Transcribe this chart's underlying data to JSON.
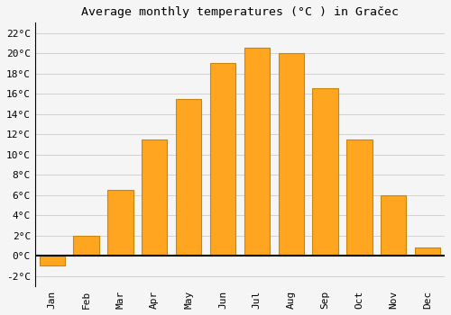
{
  "title": "Average monthly temperatures (°C ) in Gračec",
  "months": [
    "Jan",
    "Feb",
    "Mar",
    "Apr",
    "May",
    "Jun",
    "Jul",
    "Aug",
    "Sep",
    "Oct",
    "Nov",
    "Dec"
  ],
  "values": [
    -1.0,
    2.0,
    6.5,
    11.5,
    15.5,
    19.0,
    20.5,
    20.0,
    16.5,
    11.5,
    6.0,
    0.8
  ],
  "bar_color": "#FFA520",
  "bar_edge_color": "#C8870A",
  "background_color": "#F5F5F5",
  "grid_color": "#CCCCCC",
  "ylim": [
    -3,
    23
  ],
  "yticks": [
    -2,
    0,
    2,
    4,
    6,
    8,
    10,
    12,
    14,
    16,
    18,
    20,
    22
  ],
  "title_fontsize": 9.5,
  "tick_fontsize": 8,
  "font_family": "monospace"
}
